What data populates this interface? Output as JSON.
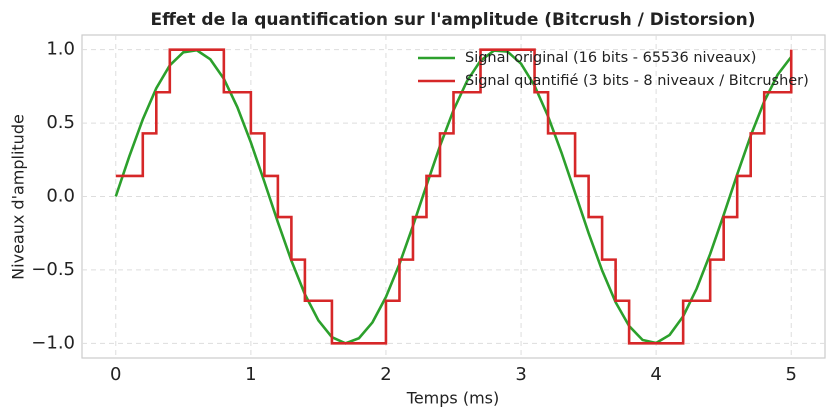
{
  "chart_data": {
    "type": "line",
    "title": "Effet de la quantification sur l'amplitude (Bitcrush / Distorsion)",
    "xlabel": "Temps (ms)",
    "ylabel": "Niveaux d'amplitude",
    "x": [
      0,
      0.1,
      0.2,
      0.3,
      0.4,
      0.5,
      0.6,
      0.7,
      0.8,
      0.9,
      1.0,
      1.1,
      1.2,
      1.3,
      1.4,
      1.5,
      1.6,
      1.7,
      1.8,
      1.9,
      2.0,
      2.1,
      2.2,
      2.3,
      2.4,
      2.5,
      2.6,
      2.7,
      2.8,
      2.9,
      3.0,
      3.1,
      3.2,
      3.3,
      3.4,
      3.5,
      3.6,
      3.7,
      3.8,
      3.9,
      4.0,
      4.1,
      4.2,
      4.3,
      4.4,
      4.5,
      4.6,
      4.7,
      4.8,
      4.9,
      5.0
    ],
    "series": [
      {
        "name": "Signal original (16 bits - 65536 niveaux)",
        "color": "#2ca02c",
        "style": "line",
        "values": [
          0,
          0.273,
          0.5253,
          0.7374,
          0.8936,
          0.9823,
          0.9961,
          0.9343,
          0.8017,
          0.6085,
          0.3681,
          0.1004,
          -0.175,
          -0.4371,
          -0.666,
          -0.8443,
          -0.9585,
          -0.9999,
          -0.9654,
          -0.8576,
          -0.6845,
          -0.4596,
          -0.1997,
          0.0753,
          0.3446,
          0.5878,
          0.7861,
          0.925,
          0.9936,
          0.9867,
          0.9048,
          0.7543,
          0.546,
          0.297,
          0.0251,
          -0.2487,
          -0.5036,
          -0.72,
          -0.8822,
          -0.9772,
          -0.998,
          -0.943,
          -0.8163,
          -0.6276,
          -0.3914,
          -0.1253,
          0.1502,
          0.4144,
          0.647,
          0.8303,
          0.9511
        ]
      },
      {
        "name": "Signal quantifié (3 bits - 8 niveaux / Bitcrusher)",
        "color": "#d62728",
        "style": "step",
        "values": [
          0.14,
          0.14,
          0.43,
          0.71,
          1,
          1,
          1,
          1,
          0.71,
          0.71,
          0.43,
          0.14,
          -0.14,
          -0.43,
          -0.71,
          -0.71,
          -1,
          -1,
          -1,
          -1,
          -0.71,
          -0.43,
          -0.14,
          0.14,
          0.43,
          0.71,
          0.71,
          1,
          1,
          1,
          1,
          0.71,
          0.43,
          0.43,
          0.14,
          -0.14,
          -0.43,
          -0.71,
          -1,
          -1,
          -1,
          -1,
          -0.71,
          -0.71,
          -0.43,
          -0.14,
          0.14,
          0.43,
          0.71,
          0.71,
          1
        ]
      }
    ],
    "xlim": [
      -0.25,
      5.25
    ],
    "xticks": [
      0,
      1,
      2,
      3,
      4,
      5
    ],
    "ylim": [
      -1.1,
      1.1
    ],
    "yticks": [
      {
        "value": -1,
        "label": "−1.0"
      },
      {
        "value": -0.5,
        "label": "−0.5"
      },
      {
        "value": 0,
        "label": "0.0"
      },
      {
        "value": 0.5,
        "label": "0.5"
      },
      {
        "value": 1,
        "label": "1.0"
      }
    ],
    "grid": true,
    "legend": "upper right"
  }
}
